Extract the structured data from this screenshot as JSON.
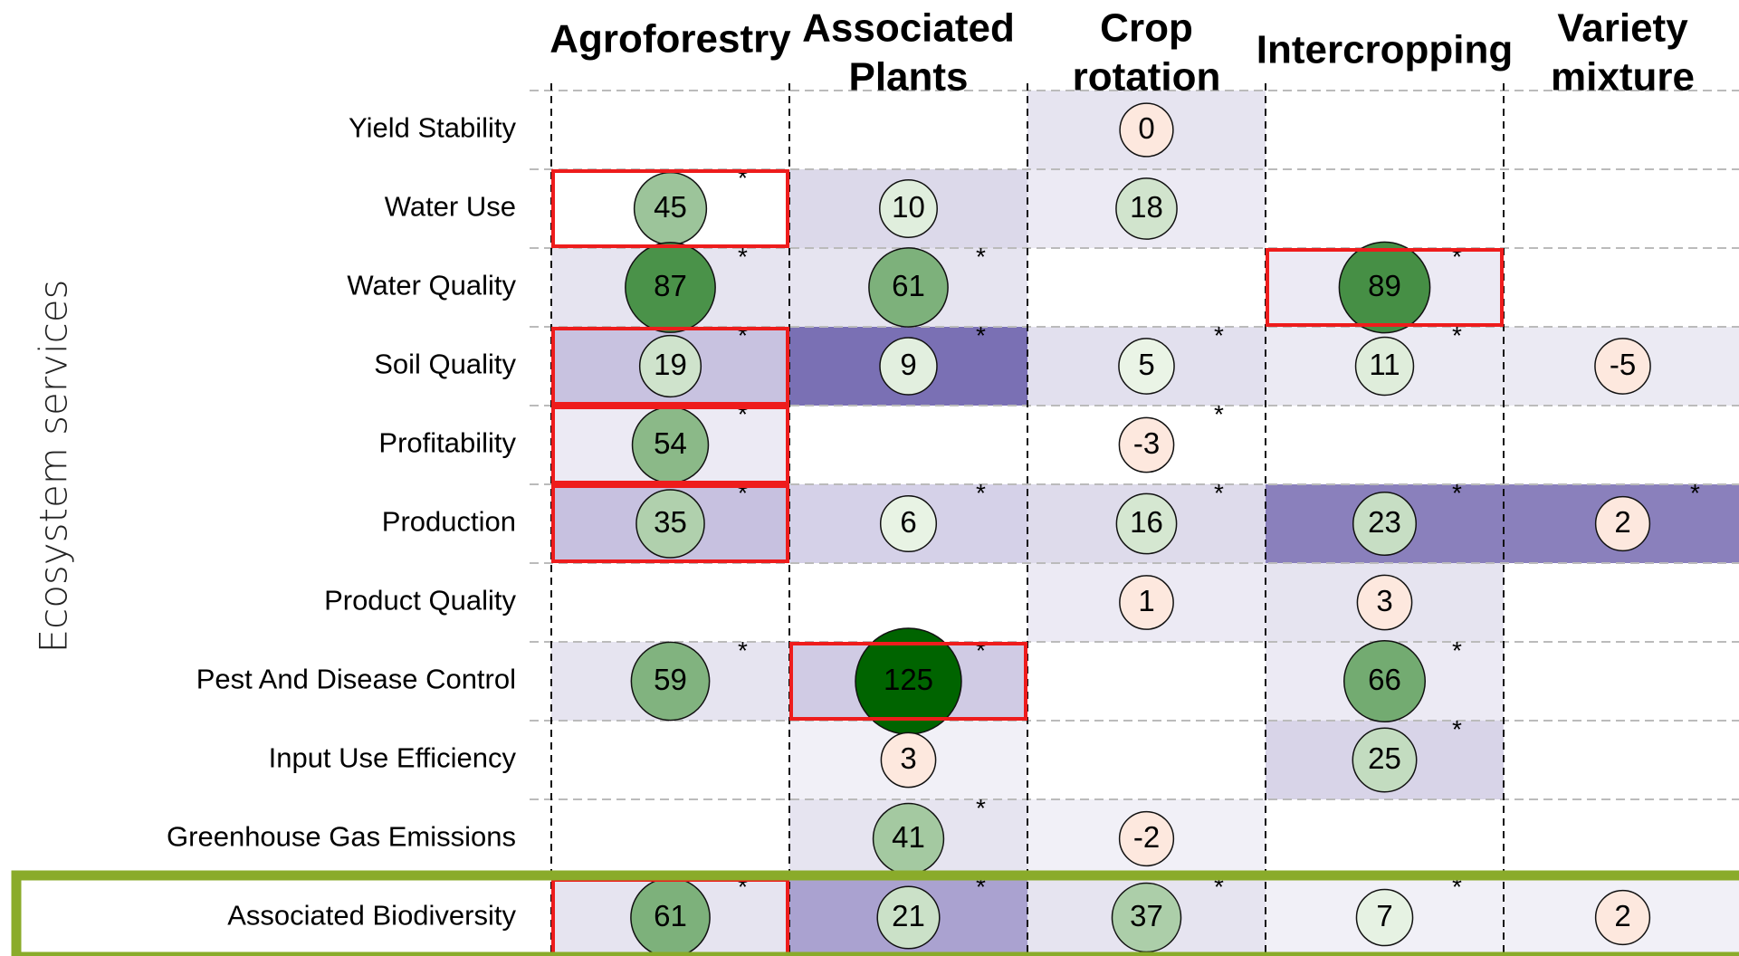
{
  "chart_data": {
    "type": "bubble_matrix",
    "y_axis_label": "Ecosystem services",
    "columns": [
      [
        "Agroforestry"
      ],
      [
        "Associated",
        "Plants"
      ],
      [
        "Crop",
        "rotation"
      ],
      [
        "Intercropping"
      ],
      [
        "Variety",
        "mixture"
      ]
    ],
    "rows": [
      "Yield Stability",
      "Water Use",
      "Water Quality",
      "Soil Quality",
      "Profitability",
      "Production",
      "Product Quality",
      "Pest And Disease Control",
      "Input Use Efficiency",
      "Greenhouse Gas Emissions",
      "Associated Biodiversity"
    ],
    "values": [
      [
        null,
        null,
        0,
        null,
        null
      ],
      [
        45,
        10,
        18,
        null,
        null
      ],
      [
        87,
        61,
        null,
        89,
        null
      ],
      [
        19,
        9,
        5,
        11,
        -5
      ],
      [
        54,
        null,
        -3,
        null,
        null
      ],
      [
        35,
        6,
        16,
        23,
        2
      ],
      [
        null,
        null,
        1,
        3,
        null
      ],
      [
        59,
        125,
        null,
        66,
        null
      ],
      [
        null,
        3,
        null,
        25,
        null
      ],
      [
        null,
        41,
        -2,
        null,
        null
      ],
      [
        61,
        21,
        37,
        7,
        2
      ]
    ],
    "significance_marker": "*",
    "significant": [
      [
        false,
        false,
        false,
        false,
        false
      ],
      [
        true,
        false,
        false,
        false,
        false
      ],
      [
        true,
        true,
        false,
        true,
        false
      ],
      [
        true,
        true,
        true,
        true,
        false
      ],
      [
        true,
        false,
        true,
        false,
        false
      ],
      [
        true,
        true,
        true,
        true,
        true
      ],
      [
        false,
        false,
        false,
        false,
        false
      ],
      [
        true,
        true,
        false,
        true,
        false
      ],
      [
        false,
        false,
        false,
        true,
        false
      ],
      [
        false,
        true,
        false,
        false,
        false
      ],
      [
        true,
        true,
        true,
        true,
        false
      ]
    ],
    "background": [
      [
        null,
        null,
        "#e6e4f0",
        null,
        null
      ],
      [
        null,
        "#dcd9ea",
        "#eceaf4",
        null,
        null
      ],
      [
        "#e6e4f0",
        "#e6e4f0",
        null,
        "#eceaf4",
        null
      ],
      [
        "#c8c2e0",
        "#7a70b4",
        "#e2e0ee",
        "#ebeaf3",
        "#ebeaf3"
      ],
      [
        "#eceaf4",
        null,
        null,
        null,
        null
      ],
      [
        "#c7c1e0",
        "#d5d1e8",
        "#dedbeb",
        "#8a80bc",
        "#8a80bc"
      ],
      [
        null,
        null,
        "#eceaf4",
        "#e6e4f0",
        null
      ],
      [
        "#e6e4f0",
        "#d0cbe4",
        null,
        "#eceaf4",
        null
      ],
      [
        null,
        "#f1f0f7",
        null,
        "#d8d4e8",
        null
      ],
      [
        null,
        "#e6e4f0",
        "#f1f0f7",
        null,
        null
      ],
      [
        "#e6e4f0",
        "#aaa2d0",
        "#e6e4f0",
        "#f1f0f7",
        "#f1f0f7"
      ]
    ],
    "highlighted": [
      [
        false,
        false,
        false,
        false,
        false
      ],
      [
        true,
        false,
        false,
        false,
        false
      ],
      [
        false,
        false,
        false,
        true,
        false
      ],
      [
        true,
        false,
        false,
        false,
        false
      ],
      [
        true,
        false,
        false,
        false,
        false
      ],
      [
        true,
        false,
        false,
        false,
        false
      ],
      [
        false,
        false,
        false,
        false,
        false
      ],
      [
        false,
        true,
        false,
        false,
        false
      ],
      [
        false,
        false,
        false,
        false,
        false
      ],
      [
        false,
        false,
        false,
        false,
        false
      ],
      [
        true,
        false,
        false,
        false,
        false
      ]
    ],
    "highlight_color": "#ee1c1c",
    "focus_row": 10,
    "focus_color": "#8aab2a"
  }
}
